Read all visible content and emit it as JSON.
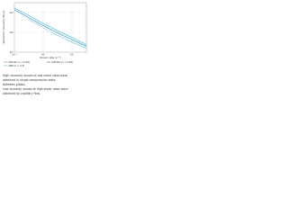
{
  "chart_data": {
    "type": "line",
    "y_label": "Apparent viscosity (Pa·s)",
    "x_label": "Shear rate (s⁻¹)",
    "x": [
      0.01,
      0.1,
      1,
      10,
      100,
      1000
    ],
    "series": [
      {
        "name": "AISI316 (n = 0.39)",
        "color": "#5bb8d6",
        "values": [
          300000,
          50000,
          8000,
          1500,
          300,
          60
        ]
      },
      {
        "name": "AISI304 (n = 0.38)",
        "color": "#3a8fc0",
        "values": [
          200000,
          30000,
          5000,
          900,
          180,
          40
        ]
      },
      {
        "name": "AZM (n = 0.3)",
        "color": "#7fd0e8",
        "values": [
          null,
          20000,
          3000,
          500,
          100,
          25
        ]
      }
    ],
    "xlim": [
      0.01,
      1000
    ],
    "ylim": [
      10,
      1000000
    ],
    "xticks": [
      {
        "value": 0.01,
        "label": "10⁻²"
      },
      {
        "value": 1,
        "label": "10⁰"
      },
      {
        "value": 100,
        "label": "10²"
      }
    ],
    "yticks": [
      {
        "value": 10,
        "label": "10¹"
      },
      {
        "value": 1000,
        "label": "10³"
      },
      {
        "value": 100000,
        "label": "10⁵"
      }
    ],
    "log_x": true,
    "log_y": true,
    "grid": true,
    "caption": [
      "High viscosity values at low shear rates were",
      "obtained in single compression tests",
      "between plates.",
      "Low viscosity values at high shear rates were",
      "obtained by capillary flow."
    ]
  }
}
